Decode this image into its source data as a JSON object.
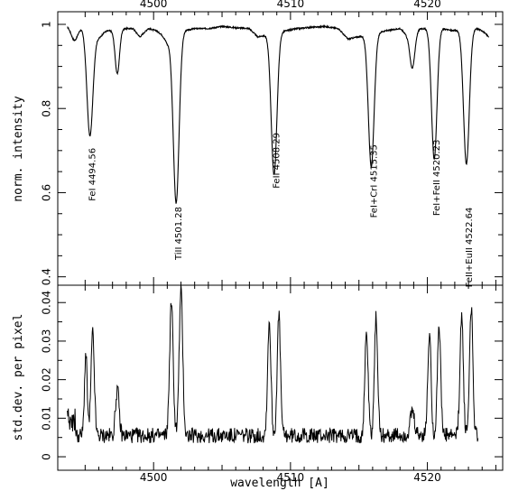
{
  "chart_data": [
    {
      "type": "line",
      "panel": "top",
      "xlabel": "",
      "ylabel": "norm. intensity",
      "xlim": [
        4493.0,
        4525.5
      ],
      "ylim": [
        0.38,
        1.03
      ],
      "xticks_labeled": [
        4500,
        4510,
        4520
      ],
      "xticks_label_text": [
        "4500",
        "4510",
        "4520"
      ],
      "yticks_labeled": [
        0.4,
        0.6,
        0.8,
        1
      ],
      "yticks_label_text": [
        "0.4",
        "0.6",
        "0.8",
        "1"
      ],
      "grid": false,
      "annotations": [
        {
          "text": "FeI 4494.56",
          "x": 4495.35,
          "y": 0.58
        },
        {
          "text": "TiII 4501.28",
          "x": 4501.65,
          "y": 0.44
        },
        {
          "text": "FeII 4508.29",
          "x": 4508.8,
          "y": 0.61
        },
        {
          "text": "FeI+CrI 4515.35",
          "x": 4515.9,
          "y": 0.54
        },
        {
          "text": "FeI+FeII 4520.23",
          "x": 4520.5,
          "y": 0.545
        },
        {
          "text": "FeII+EuII 4522.64",
          "x": 4522.85,
          "y": 0.375
        }
      ],
      "series": [
        {
          "line_kind": "baseline",
          "x": [
            4493.7,
            4494.0,
            4494.4,
            4496.5,
            4497.0,
            4497.7,
            4498.5,
            4499.0,
            4499.6,
            4500.2,
            4500.6,
            4501.0,
            4502.3,
            4503.0,
            4504.0,
            4505.0,
            4506.0,
            4507.0,
            4507.6,
            4509.7,
            4510.5,
            4511.5,
            4512.5,
            4513.5,
            4514.2,
            4517.0,
            4518.0,
            4518.5,
            4519.5,
            4521.1,
            4521.8,
            4523.6,
            4524.0,
            4524.5
          ],
          "y": [
            0.998,
            1.0,
            0.995,
            0.985,
            0.985,
            0.99,
            0.99,
            0.97,
            0.99,
            0.985,
            0.975,
            0.955,
            0.985,
            0.99,
            0.99,
            0.995,
            0.992,
            0.99,
            0.97,
            0.985,
            0.99,
            0.993,
            0.995,
            0.99,
            0.965,
            0.985,
            0.99,
            0.975,
            0.99,
            0.99,
            0.985,
            0.99,
            0.985,
            0.97
          ]
        },
        {
          "line_kind": "lines",
          "lines": [
            {
              "center": 4494.2,
              "depth": 0.035,
              "width": 0.25
            },
            {
              "center": 4495.35,
              "depth": 0.255,
              "width": 0.22
            },
            {
              "center": 4496.0,
              "depth": 0.018,
              "width": 0.25
            },
            {
              "center": 4497.35,
              "depth": 0.105,
              "width": 0.16
            },
            {
              "center": 4501.65,
              "depth": 0.395,
              "width": 0.21
            },
            {
              "center": 4508.8,
              "depth": 0.335,
              "width": 0.21
            },
            {
              "center": 4515.9,
              "depth": 0.315,
              "width": 0.21
            },
            {
              "center": 4518.9,
              "depth": 0.085,
              "width": 0.18
            },
            {
              "center": 4520.5,
              "depth": 0.31,
              "width": 0.2
            },
            {
              "center": 4522.85,
              "depth": 0.32,
              "width": 0.21
            }
          ]
        }
      ]
    },
    {
      "type": "line",
      "panel": "bottom",
      "xlabel": "wavelength [A]",
      "ylabel": "std.dev. per pixel",
      "xlim": [
        4493.0,
        4525.5
      ],
      "ylim": [
        -0.0035,
        0.0445
      ],
      "xticks_labeled": [
        4500,
        4510,
        4520
      ],
      "xticks_label_text": [
        "4500",
        "4510",
        "4520"
      ],
      "yticks_labeled": [
        0,
        0.01,
        0.02,
        0.03,
        0.04
      ],
      "yticks_label_text": [
        "0",
        "0.01",
        "0.02",
        "0.03",
        "0.04"
      ],
      "grid": false,
      "series": [
        {
          "line_kind": "peaks",
          "noise_level": 0.0055,
          "noise_amplitude": 0.002,
          "x_range": [
            4493.7,
            4523.7
          ],
          "peaks": [
            {
              "center": 4495.05,
              "height": 0.021,
              "width": 0.1
            },
            {
              "center": 4495.55,
              "height": 0.0265,
              "width": 0.12
            },
            {
              "center": 4497.35,
              "height": 0.012,
              "width": 0.13
            },
            {
              "center": 4501.3,
              "height": 0.0345,
              "width": 0.13
            },
            {
              "center": 4502.0,
              "height": 0.0375,
              "width": 0.13
            },
            {
              "center": 4508.45,
              "height": 0.0295,
              "width": 0.12
            },
            {
              "center": 4509.15,
              "height": 0.031,
              "width": 0.12
            },
            {
              "center": 4515.55,
              "height": 0.027,
              "width": 0.12
            },
            {
              "center": 4516.25,
              "height": 0.0305,
              "width": 0.12
            },
            {
              "center": 4518.9,
              "height": 0.006,
              "width": 0.15
            },
            {
              "center": 4520.15,
              "height": 0.0265,
              "width": 0.12
            },
            {
              "center": 4520.85,
              "height": 0.0285,
              "width": 0.12
            },
            {
              "center": 4522.5,
              "height": 0.0315,
              "width": 0.12
            },
            {
              "center": 4523.2,
              "height": 0.0335,
              "width": 0.12
            }
          ]
        }
      ]
    }
  ]
}
